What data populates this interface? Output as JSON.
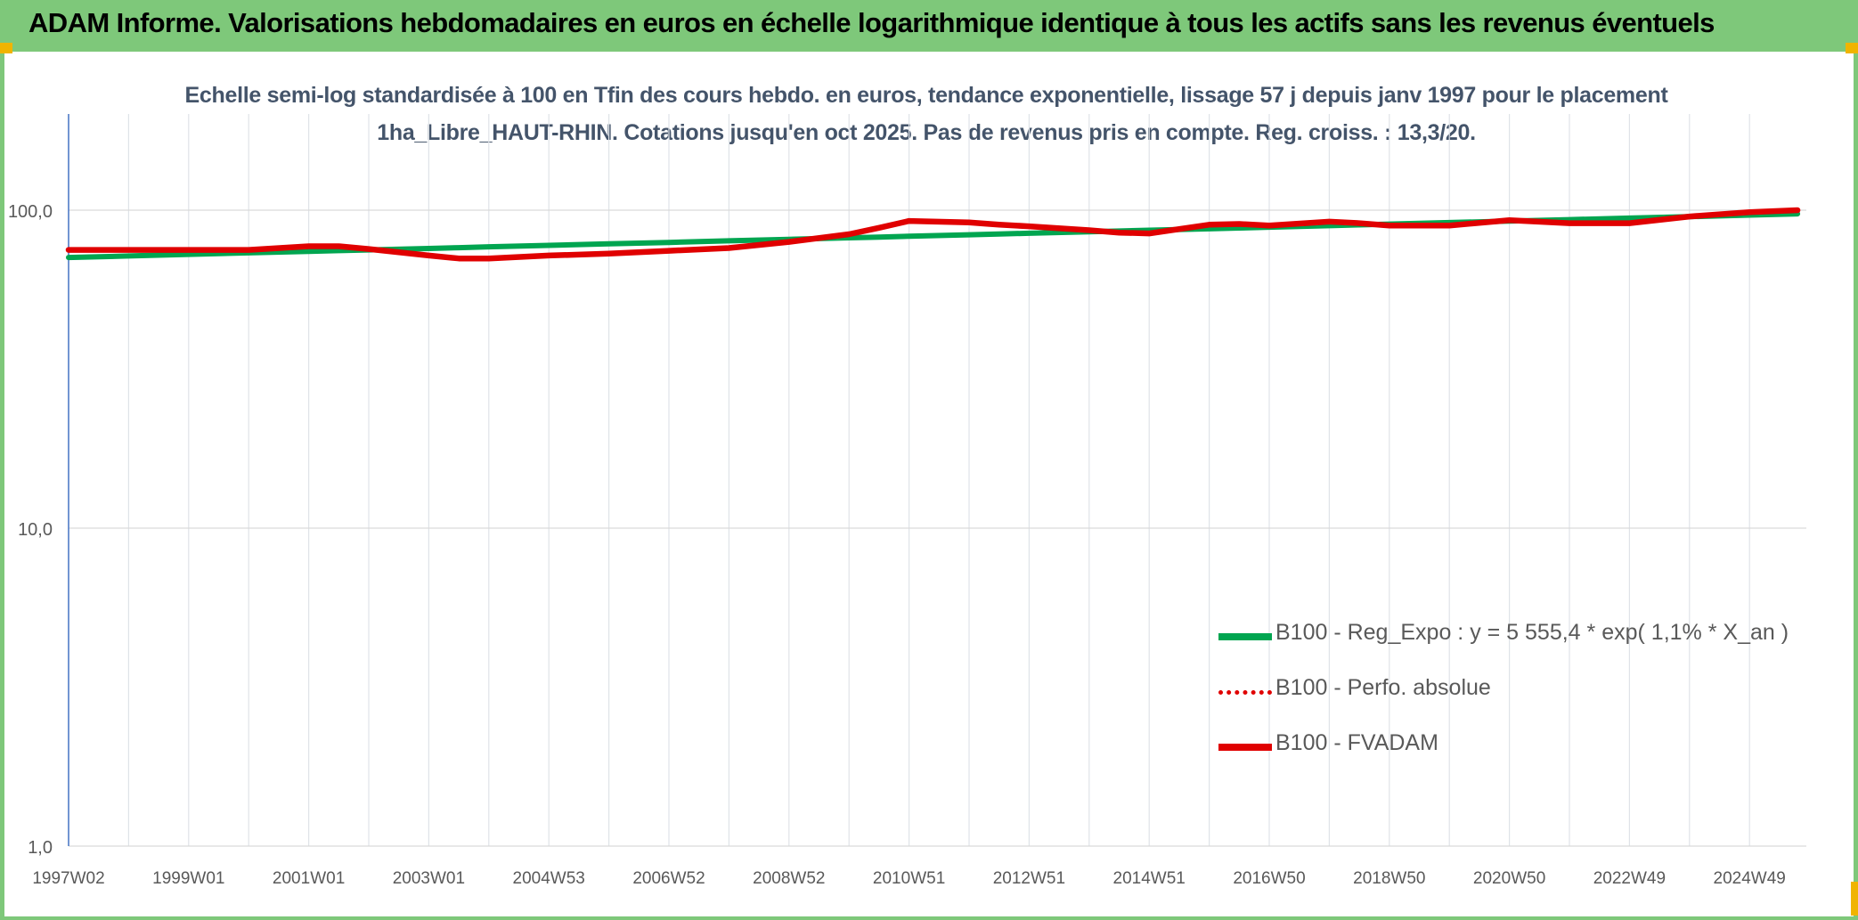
{
  "banner": {
    "title": "ADAM Informe. Valorisations hebdomadaires en euros en échelle logarithmique identique à tous les actifs sans les revenus éventuels",
    "color": "#7ec87a"
  },
  "chart_data": {
    "type": "line",
    "title": "Echelle semi-log standardisée à 100 en Tfin des cours hebdo. en euros, tendance exponentielle, lissage 57 j depuis janv 1997 pour le placement 1ha_Libre_HAUT-RHIN. Cotations jusqu'en oct 2025. Pas de revenus pris en compte. Reg. croiss. : 13,3/20.",
    "xlabel": "",
    "ylabel": "",
    "y_scale": "log",
    "ylim": [
      1,
      200
    ],
    "y_ticks": [
      "1,0",
      "10,0",
      "100,0"
    ],
    "x_tick_labels": [
      "1997W02",
      "1999W01",
      "2001W01",
      "2003W01",
      "2004W53",
      "2006W52",
      "2008W52",
      "2010W51",
      "2012W51",
      "2014W51",
      "2016W50",
      "2018W50",
      "2020W50",
      "2022W49",
      "2024W49"
    ],
    "grid": true,
    "legend_position": "bottom-right",
    "x": [
      1997.0,
      1998.0,
      1999.0,
      2000.0,
      2001.0,
      2001.5,
      2002.0,
      2003.0,
      2003.5,
      2004.0,
      2005.0,
      2006.0,
      2007.0,
      2008.0,
      2009.0,
      2010.0,
      2010.5,
      2011.0,
      2012.0,
      2012.5,
      2013.0,
      2014.0,
      2014.5,
      2015.0,
      2016.0,
      2016.5,
      2017.0,
      2018.0,
      2018.5,
      2019.0,
      2020.0,
      2021.0,
      2022.0,
      2023.0,
      2024.0,
      2025.0,
      2025.8
    ],
    "series": [
      {
        "name": "B100 - Reg_Expo : y = 5 555,4 * exp( 1,1% *  X_an )",
        "color": "#00a550",
        "style": "solid",
        "values": [
          71.0,
          71.8,
          72.6,
          73.4,
          74.2,
          74.6,
          75.0,
          75.8,
          76.2,
          76.7,
          77.5,
          78.4,
          79.2,
          80.1,
          81.0,
          81.9,
          82.3,
          82.8,
          83.7,
          84.2,
          84.6,
          85.5,
          86.0,
          86.5,
          87.4,
          87.9,
          88.4,
          89.4,
          89.9,
          90.4,
          91.4,
          92.4,
          93.4,
          94.4,
          95.4,
          96.5,
          97.4
        ]
      },
      {
        "name": "B100 - Perfo. absolue",
        "color": "#e00000",
        "style": "dotted",
        "values": [
          75.0,
          75.0,
          75.0,
          75.0,
          77.0,
          77.0,
          75.5,
          72.0,
          70.5,
          70.5,
          72.0,
          73.0,
          74.5,
          76.0,
          79.5,
          84.0,
          88.0,
          92.5,
          91.5,
          90.0,
          89.0,
          86.5,
          85.0,
          84.5,
          90.0,
          90.5,
          89.5,
          92.0,
          91.0,
          89.5,
          89.5,
          93.0,
          91.0,
          91.0,
          95.5,
          98.5,
          100.0
        ]
      },
      {
        "name": "B100 - FVADAM",
        "color": "#e00000",
        "style": "solid",
        "values": [
          75.0,
          75.0,
          75.0,
          75.0,
          77.0,
          77.0,
          75.5,
          72.0,
          70.5,
          70.5,
          72.0,
          73.0,
          74.5,
          76.0,
          79.5,
          84.0,
          88.0,
          92.5,
          91.5,
          90.0,
          89.0,
          86.5,
          85.0,
          84.5,
          90.0,
          90.5,
          89.5,
          92.0,
          91.0,
          89.5,
          89.5,
          93.0,
          91.0,
          91.0,
          95.5,
          98.5,
          100.0
        ]
      }
    ]
  }
}
